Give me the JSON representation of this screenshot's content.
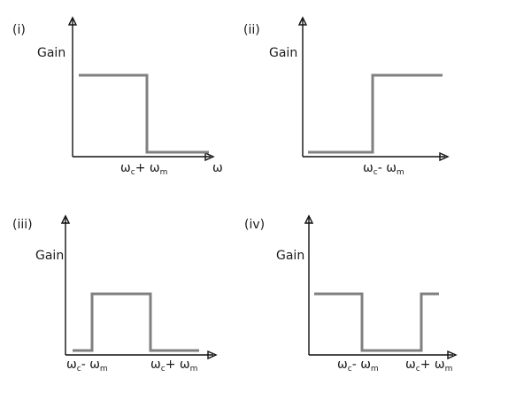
{
  "figure": {
    "panels": [
      {
        "id": "(i)",
        "ylabel": "Gain",
        "x_axis_symbol": "ω",
        "response": "low-pass",
        "gain_levels": [
          "high",
          "low"
        ],
        "tick_labels": [
          {
            "base": "ω",
            "sub": "c",
            "mid": "+ ω",
            "sub2": "m"
          }
        ]
      },
      {
        "id": "(ii)",
        "ylabel": "Gain",
        "x_axis_symbol": "",
        "response": "high-pass",
        "gain_levels": [
          "low",
          "high"
        ],
        "tick_labels": [
          {
            "base": "ω",
            "sub": "c",
            "mid": "- ω",
            "sub2": "m"
          }
        ]
      },
      {
        "id": "(iii)",
        "ylabel": "Gain",
        "x_axis_symbol": "",
        "response": "band-pass",
        "gain_levels": [
          "low",
          "high",
          "low"
        ],
        "tick_labels": [
          {
            "base": "ω",
            "sub": "c",
            "mid": "- ω",
            "sub2": "m"
          },
          {
            "base": "ω",
            "sub": "c",
            "mid": "+ ω",
            "sub2": "m"
          }
        ]
      },
      {
        "id": "(iv)",
        "ylabel": "Gain",
        "x_axis_symbol": "",
        "response": "band-stop",
        "gain_levels": [
          "high",
          "low",
          "high"
        ],
        "tick_labels": [
          {
            "base": "ω",
            "sub": "c",
            "mid": "- ω",
            "sub2": "m"
          },
          {
            "base": "ω",
            "sub": "c",
            "mid": "+ ω",
            "sub2": "m"
          }
        ]
      }
    ]
  },
  "colors": {
    "curve": "#808080",
    "axis": "#111111",
    "text": "#1a1a1a"
  }
}
